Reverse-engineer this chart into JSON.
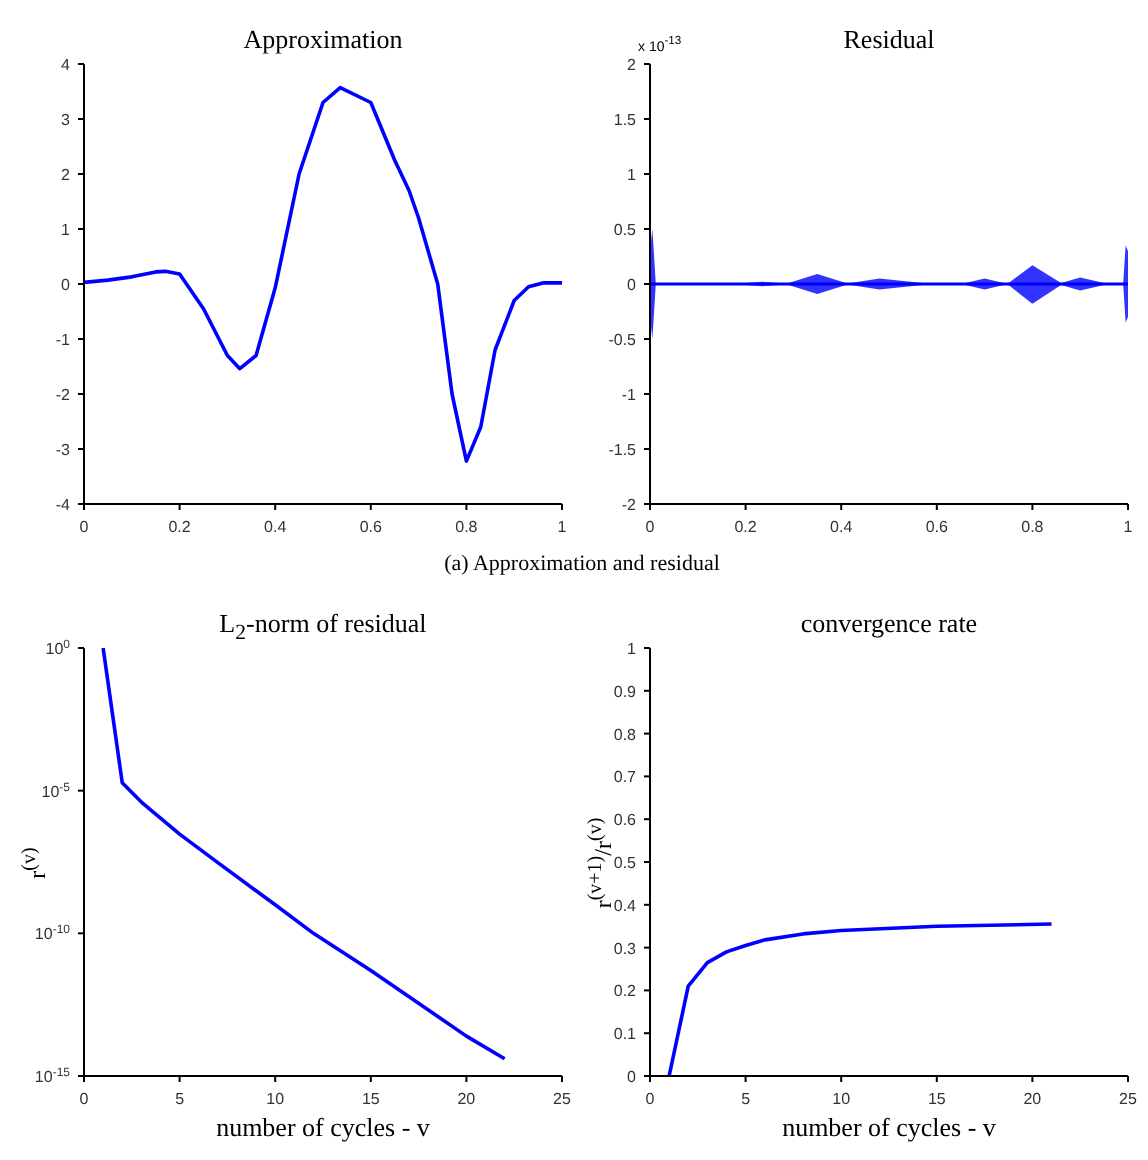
{
  "chart_data": [
    {
      "type": "line",
      "title": "Approximation",
      "annotations": [
        "(a) Approximation and residual"
      ],
      "xlim": [
        0,
        1
      ],
      "xticks": [
        0,
        0.2,
        0.4,
        0.6,
        0.8,
        1
      ],
      "ylim": [
        -4,
        4
      ],
      "yticks": [
        -4,
        -3,
        -2,
        -1,
        0,
        1,
        2,
        3,
        4
      ],
      "grid": false,
      "marker": "none",
      "series": [
        {
          "color": "#0000ff",
          "x": [
            0,
            0.05,
            0.1,
            0.15,
            0.17,
            0.2,
            0.25,
            0.3,
            0.326,
            0.36,
            0.4,
            0.45,
            0.5,
            0.536,
            0.6,
            0.65,
            0.68,
            0.7,
            0.74,
            0.77,
            0.8,
            0.83,
            0.86,
            0.9,
            0.93,
            0.96,
            1
          ],
          "values": [
            0.03,
            0.07,
            0.13,
            0.22,
            0.23,
            0.18,
            -0.45,
            -1.3,
            -1.54,
            -1.3,
            -0.07,
            2.0,
            3.3,
            3.57,
            3.3,
            2.25,
            1.7,
            1.2,
            0,
            -2.0,
            -3.22,
            -2.6,
            -1.2,
            -0.3,
            -0.05,
            0.02,
            0.02
          ]
        }
      ]
    },
    {
      "type": "line",
      "title": "Residual",
      "marker": "none",
      "annotations": [
        "x 10$^{-13}$"
      ],
      "xlim": [
        0,
        1
      ],
      "xticks": [
        0,
        0.2,
        0.4,
        0.6,
        0.8,
        1
      ],
      "ylim": [
        -2,
        2
      ],
      "yticks": [
        -2,
        -1.5,
        -1,
        -0.5,
        0,
        0.5,
        1,
        1.5,
        2
      ],
      "grid": false,
      "series": [
        {
          "color": "#0000ff",
          "x": [
            0,
            0.005,
            0.012,
            0.02,
            0.2,
            0.235,
            0.27,
            0.29,
            0.35,
            0.41,
            0.42,
            0.48,
            0.57,
            0.62,
            0.66,
            0.7,
            0.74,
            0.75,
            0.8,
            0.86,
            0.9,
            0.95,
            0.99,
            0.995,
            1
          ],
          "values": [
            0,
            0,
            0,
            0,
            0,
            0,
            0,
            0,
            0,
            0,
            0,
            0,
            0,
            0,
            0,
            0,
            0,
            0,
            0,
            0,
            0,
            0,
            0,
            0,
            0
          ],
          "upper": [
            0.3,
            0.5,
            0.01,
            0.01,
            0.01,
            0.02,
            0.01,
            0.01,
            0.09,
            0.01,
            0.01,
            0.05,
            0.01,
            0.01,
            0.01,
            0.05,
            0.01,
            0.01,
            0.17,
            0.01,
            0.06,
            0.01,
            0.01,
            0.35,
            0.3
          ],
          "lower": [
            -0.3,
            -0.5,
            -0.01,
            -0.01,
            -0.01,
            -0.02,
            -0.01,
            -0.01,
            -0.09,
            -0.01,
            -0.01,
            -0.05,
            -0.01,
            -0.01,
            -0.01,
            -0.05,
            -0.01,
            -0.01,
            -0.18,
            -0.01,
            -0.06,
            -0.01,
            -0.01,
            -0.35,
            -0.3
          ]
        }
      ]
    },
    {
      "type": "line",
      "title": "L$_{2}$-norm of residual",
      "xlabel": "number of cycles - v",
      "ylabel": "r$^{(v)}$",
      "log": "y",
      "xlim": [
        0,
        25
      ],
      "xticks": [
        0,
        5,
        10,
        15,
        20,
        25
      ],
      "ylim": [
        1e-15,
        1
      ],
      "yticks": [
        {
          "value": 1,
          "label": "10$^{0}$"
        },
        {
          "value": 1e-05,
          "label": "10$^{-5}$"
        },
        {
          "value": 1e-10,
          "label": "10$^{-10}$"
        },
        {
          "value": 1e-15,
          "label": "10$^{-15}$"
        }
      ],
      "grid": false,
      "marker": "none",
      "series": [
        {
          "color": "#0000ff",
          "x": [
            1,
            2,
            3,
            4,
            5,
            7,
            10,
            12,
            15,
            20,
            22
          ],
          "values": [
            1,
            1.9e-05,
            4e-06,
            1.1e-06,
            3e-07,
            3e-08,
            1e-09,
            1e-10,
            5e-12,
            2.5e-14,
            4e-15
          ]
        }
      ]
    },
    {
      "type": "line",
      "title": "convergence rate",
      "xlabel": "number of cycles - v",
      "ylabel": "r$^{(v+1)}$/r$^{(v)}$",
      "xlim": [
        0,
        25
      ],
      "xticks": [
        0,
        5,
        10,
        15,
        20,
        25
      ],
      "ylim": [
        0,
        1
      ],
      "yticks": [
        0,
        0.1,
        0.2,
        0.3,
        0.4,
        0.5,
        0.6,
        0.7,
        0.8,
        0.9,
        1
      ],
      "grid": false,
      "marker": "none",
      "series": [
        {
          "color": "#0000ff",
          "x": [
            1,
            2,
            3,
            4,
            5,
            6,
            8,
            10,
            15,
            21
          ],
          "values": [
            0,
            0.21,
            0.265,
            0.29,
            0.305,
            0.318,
            0.332,
            0.34,
            0.35,
            0.355
          ]
        }
      ]
    }
  ]
}
